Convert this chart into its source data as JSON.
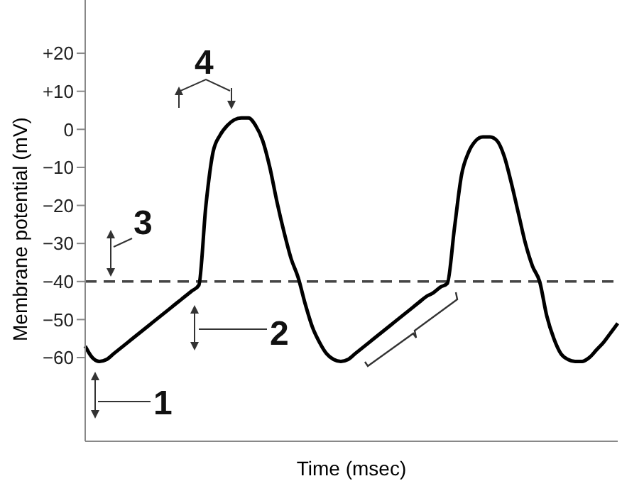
{
  "chart_data": {
    "type": "line",
    "xlabel": "Time (msec)",
    "ylabel": "Membrane potential (mV)",
    "categories": [
      null,
      null,
      null,
      null,
      null,
      null,
      null,
      null,
      null,
      null,
      null,
      null,
      null,
      null,
      null,
      null,
      null,
      null,
      null,
      null,
      null,
      null,
      null,
      null,
      null,
      null,
      null,
      null,
      null,
      null,
      null,
      null,
      null,
      null,
      null,
      null,
      null,
      null,
      null,
      null,
      null,
      null,
      null,
      null,
      null,
      null,
      null,
      null,
      null,
      null,
      null,
      null,
      null,
      null,
      null,
      null,
      null,
      null,
      null,
      null,
      null,
      null,
      null,
      null,
      null,
      null,
      null,
      null,
      null,
      null,
      null,
      null,
      null,
      null,
      null,
      null
    ],
    "series": [
      {
        "color": "#000000",
        "values": [
          -57,
          -60,
          -61,
          -60.5,
          -59,
          -57.5,
          -56,
          -54.5,
          -53,
          -51.5,
          -50,
          -48.5,
          -47,
          -45.5,
          -44,
          -42.5,
          -41,
          -20,
          -6,
          -1.5,
          1,
          2.5,
          3,
          3,
          1,
          -3,
          -10,
          -19,
          -27,
          -34,
          -39,
          -46,
          -52,
          -56,
          -59,
          -60.5,
          -61,
          -60.5,
          -59,
          -57.5,
          -56,
          -54.5,
          -53,
          -51.5,
          -50,
          -48.5,
          -47,
          -45.5,
          -44,
          -43,
          -41.5,
          -40.5,
          -26,
          -12,
          -6,
          -3,
          -2,
          -2,
          -3,
          -7,
          -14,
          -22,
          -30,
          -36,
          -40,
          -49,
          -55,
          -59,
          -60.5,
          -61,
          -61,
          -60,
          -58,
          -56,
          -53.5,
          -51
        ]
      }
    ],
    "ylim": [
      -82,
      34
    ],
    "yticks": [
      {
        "value": 20,
        "label": "+20"
      },
      {
        "value": 10,
        "label": "+10"
      },
      0,
      {
        "value": -10,
        "label": "−10"
      },
      {
        "value": -20,
        "label": "−20"
      },
      {
        "value": -30,
        "label": "−30"
      },
      {
        "value": -40,
        "label": "−40"
      },
      {
        "value": -50,
        "label": "−50"
      },
      {
        "value": -60,
        "label": "−60"
      }
    ],
    "tick_labels": "y",
    "marker": "none",
    "line_style": "solid",
    "ref_lines": [
      {
        "axis": "y",
        "value": -40,
        "color": "#444444",
        "line_style": "dashed"
      }
    ],
    "annotations": [
      "1",
      "2",
      "3",
      "4"
    ]
  }
}
